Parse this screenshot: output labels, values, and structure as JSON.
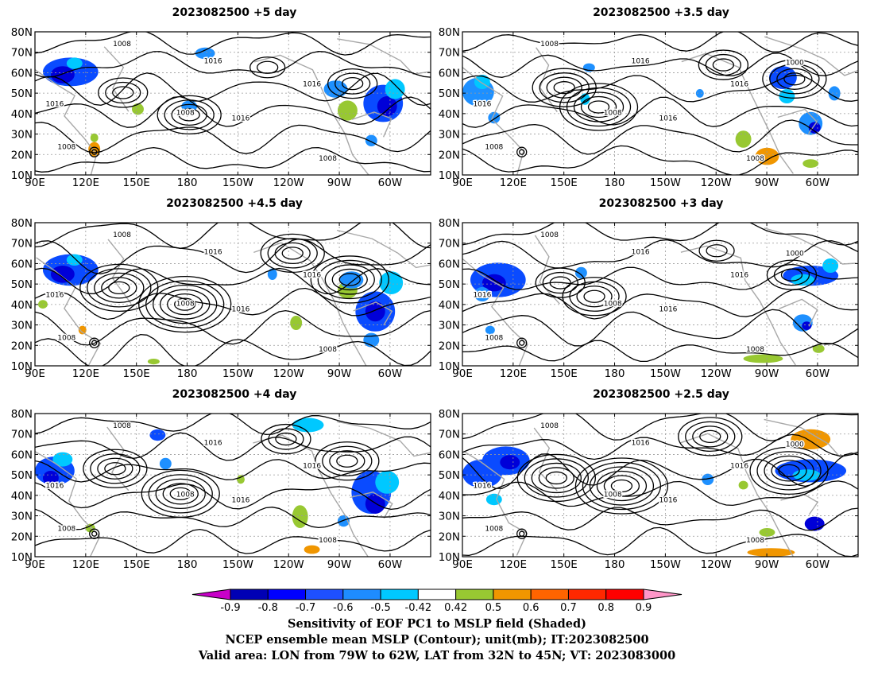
{
  "panels": [
    {
      "title": "2023082500  +5 day",
      "blobs": [
        [
          0.09,
          0.28,
          0.07,
          0.1,
          "#0a4bff"
        ],
        [
          0.07,
          0.3,
          0.03,
          0.06,
          "#0000d8"
        ],
        [
          0.1,
          0.22,
          0.02,
          0.04,
          "#00c8ff"
        ],
        [
          0.43,
          0.15,
          0.025,
          0.04,
          "#1e90ff"
        ],
        [
          0.39,
          0.52,
          0.02,
          0.04,
          "#1e90ff"
        ],
        [
          0.76,
          0.4,
          0.03,
          0.06,
          "#1e90ff"
        ],
        [
          0.79,
          0.55,
          0.025,
          0.07,
          "#98c832"
        ],
        [
          0.88,
          0.5,
          0.05,
          0.13,
          "#0a4bff"
        ],
        [
          0.89,
          0.52,
          0.025,
          0.07,
          "#0000d8"
        ],
        [
          0.91,
          0.4,
          0.025,
          0.07,
          "#00c8ff"
        ],
        [
          0.85,
          0.76,
          0.015,
          0.04,
          "#1e90ff"
        ],
        [
          0.26,
          0.54,
          0.015,
          0.04,
          "#98c832"
        ],
        [
          0.15,
          0.82,
          0.015,
          0.05,
          "#f09600"
        ],
        [
          0.15,
          0.74,
          0.01,
          0.03,
          "#98c832"
        ]
      ]
    },
    {
      "title": "2023082500  +3.5 day",
      "blobs": [
        [
          0.04,
          0.42,
          0.04,
          0.1,
          "#1e90ff"
        ],
        [
          0.05,
          0.35,
          0.02,
          0.05,
          "#00c8ff"
        ],
        [
          0.08,
          0.6,
          0.015,
          0.04,
          "#1e90ff"
        ],
        [
          0.32,
          0.25,
          0.015,
          0.03,
          "#1e90ff"
        ],
        [
          0.31,
          0.47,
          0.012,
          0.04,
          "#00c8ff"
        ],
        [
          0.6,
          0.43,
          0.01,
          0.03,
          "#1e90ff"
        ],
        [
          0.77,
          0.87,
          0.03,
          0.06,
          "#f09600"
        ],
        [
          0.71,
          0.75,
          0.02,
          0.06,
          "#98c832"
        ],
        [
          0.81,
          0.32,
          0.035,
          0.08,
          "#0a4bff"
        ],
        [
          0.82,
          0.45,
          0.02,
          0.05,
          "#00c8ff"
        ],
        [
          0.88,
          0.64,
          0.03,
          0.08,
          "#1e90ff"
        ],
        [
          0.89,
          0.67,
          0.015,
          0.04,
          "#0000d8"
        ],
        [
          0.94,
          0.43,
          0.015,
          0.05,
          "#1e90ff"
        ],
        [
          0.88,
          0.92,
          0.02,
          0.03,
          "#98c832"
        ]
      ]
    },
    {
      "title": "2023082500  +4.5 day",
      "blobs": [
        [
          0.09,
          0.33,
          0.07,
          0.11,
          "#0a4bff"
        ],
        [
          0.07,
          0.36,
          0.03,
          0.06,
          "#0000d8"
        ],
        [
          0.1,
          0.26,
          0.02,
          0.04,
          "#00c8ff"
        ],
        [
          0.12,
          0.75,
          0.01,
          0.03,
          "#f09600"
        ],
        [
          0.02,
          0.57,
          0.012,
          0.03,
          "#98c832"
        ],
        [
          0.6,
          0.36,
          0.012,
          0.04,
          "#1e90ff"
        ],
        [
          0.66,
          0.7,
          0.015,
          0.05,
          "#98c832"
        ],
        [
          0.79,
          0.47,
          0.025,
          0.06,
          "#98c832"
        ],
        [
          0.8,
          0.4,
          0.03,
          0.06,
          "#1e90ff"
        ],
        [
          0.86,
          0.62,
          0.05,
          0.14,
          "#0a4bff"
        ],
        [
          0.86,
          0.62,
          0.025,
          0.07,
          "#0000d8"
        ],
        [
          0.9,
          0.42,
          0.03,
          0.08,
          "#00c8ff"
        ],
        [
          0.85,
          0.82,
          0.02,
          0.05,
          "#1e90ff"
        ],
        [
          0.3,
          0.97,
          0.015,
          0.02,
          "#98c832"
        ]
      ]
    },
    {
      "title": "2023082500  +3 day",
      "blobs": [
        [
          0.09,
          0.4,
          0.07,
          0.12,
          "#0a4bff"
        ],
        [
          0.08,
          0.42,
          0.03,
          0.06,
          "#0000d8"
        ],
        [
          0.05,
          0.5,
          0.02,
          0.05,
          "#1e90ff"
        ],
        [
          0.3,
          0.35,
          0.015,
          0.04,
          "#1e90ff"
        ],
        [
          0.07,
          0.75,
          0.012,
          0.03,
          "#1e90ff"
        ],
        [
          0.76,
          0.95,
          0.05,
          0.03,
          "#98c832"
        ],
        [
          0.88,
          0.37,
          0.07,
          0.07,
          "#0a4bff"
        ],
        [
          0.86,
          0.4,
          0.03,
          0.04,
          "#00c8ff"
        ],
        [
          0.86,
          0.7,
          0.025,
          0.06,
          "#1e90ff"
        ],
        [
          0.87,
          0.72,
          0.012,
          0.03,
          "#0000d8"
        ],
        [
          0.93,
          0.3,
          0.02,
          0.05,
          "#00c8ff"
        ],
        [
          0.9,
          0.88,
          0.015,
          0.03,
          "#98c832"
        ]
      ]
    },
    {
      "title": "2023082500  +4 day",
      "blobs": [
        [
          0.05,
          0.4,
          0.05,
          0.1,
          "#0a4bff"
        ],
        [
          0.07,
          0.32,
          0.025,
          0.05,
          "#00c8ff"
        ],
        [
          0.04,
          0.45,
          0.02,
          0.05,
          "#0000d8"
        ],
        [
          0.31,
          0.15,
          0.02,
          0.04,
          "#0a4bff"
        ],
        [
          0.33,
          0.35,
          0.015,
          0.04,
          "#1e90ff"
        ],
        [
          0.69,
          0.08,
          0.04,
          0.05,
          "#00c8ff"
        ],
        [
          0.67,
          0.72,
          0.02,
          0.08,
          "#98c832"
        ],
        [
          0.7,
          0.95,
          0.02,
          0.03,
          "#f09600"
        ],
        [
          0.78,
          0.75,
          0.015,
          0.04,
          "#1e90ff"
        ],
        [
          0.85,
          0.55,
          0.05,
          0.15,
          "#0a4bff"
        ],
        [
          0.86,
          0.63,
          0.025,
          0.07,
          "#0000d8"
        ],
        [
          0.89,
          0.48,
          0.03,
          0.08,
          "#00c8ff"
        ],
        [
          0.52,
          0.46,
          0.01,
          0.03,
          "#98c832"
        ],
        [
          0.14,
          0.8,
          0.012,
          0.03,
          "#98c832"
        ]
      ]
    },
    {
      "title": "2023082500  +2.5 day",
      "blobs": [
        [
          0.05,
          0.42,
          0.05,
          0.1,
          "#0a4bff"
        ],
        [
          0.11,
          0.33,
          0.06,
          0.1,
          "#0a4bff"
        ],
        [
          0.12,
          0.34,
          0.025,
          0.05,
          "#0000d8"
        ],
        [
          0.08,
          0.6,
          0.02,
          0.04,
          "#00c8ff"
        ],
        [
          0.62,
          0.46,
          0.015,
          0.04,
          "#1e90ff"
        ],
        [
          0.88,
          0.18,
          0.05,
          0.07,
          "#f09600"
        ],
        [
          0.88,
          0.4,
          0.09,
          0.08,
          "#0a4bff"
        ],
        [
          0.87,
          0.43,
          0.035,
          0.04,
          "#00c8ff"
        ],
        [
          0.89,
          0.77,
          0.025,
          0.05,
          "#0000d8"
        ],
        [
          0.78,
          0.97,
          0.06,
          0.03,
          "#f09600"
        ],
        [
          0.77,
          0.83,
          0.02,
          0.03,
          "#98c832"
        ],
        [
          0.71,
          0.5,
          0.012,
          0.03,
          "#98c832"
        ]
      ]
    }
  ],
  "map": {
    "lat_labels": [
      "80N",
      "70N",
      "60N",
      "50N",
      "40N",
      "30N",
      "20N",
      "10N"
    ],
    "lon_labels": [
      "90E",
      "120E",
      "150E",
      "180",
      "150W",
      "120W",
      "90W",
      "60W"
    ],
    "contour_labels": [
      "1008",
      "1016",
      "1000"
    ]
  },
  "colorbar": {
    "colors": [
      "#c800c8",
      "#0000b4",
      "#0000ff",
      "#1e50ff",
      "#1e8cff",
      "#00c8ff",
      "#ffffff",
      "#98c832",
      "#f09600",
      "#ff6400",
      "#ff2800",
      "#ff0000",
      "#ff96c8"
    ],
    "tick_labels": [
      "-0.9",
      "-0.8",
      "-0.7",
      "-0.6",
      "-0.5",
      "-0.42",
      "0.42",
      "0.5",
      "0.6",
      "0.7",
      "0.8",
      "0.9"
    ]
  },
  "caption": {
    "line1": "Sensitivity of EOF PC1 to MSLP field (Shaded)",
    "line2": "NCEP ensemble mean MSLP (Contour); unit(mb); IT:2023082500",
    "line3": "Valid area: LON from 79W to 62W, LAT from 32N to 45N; VT: 2023083000"
  }
}
